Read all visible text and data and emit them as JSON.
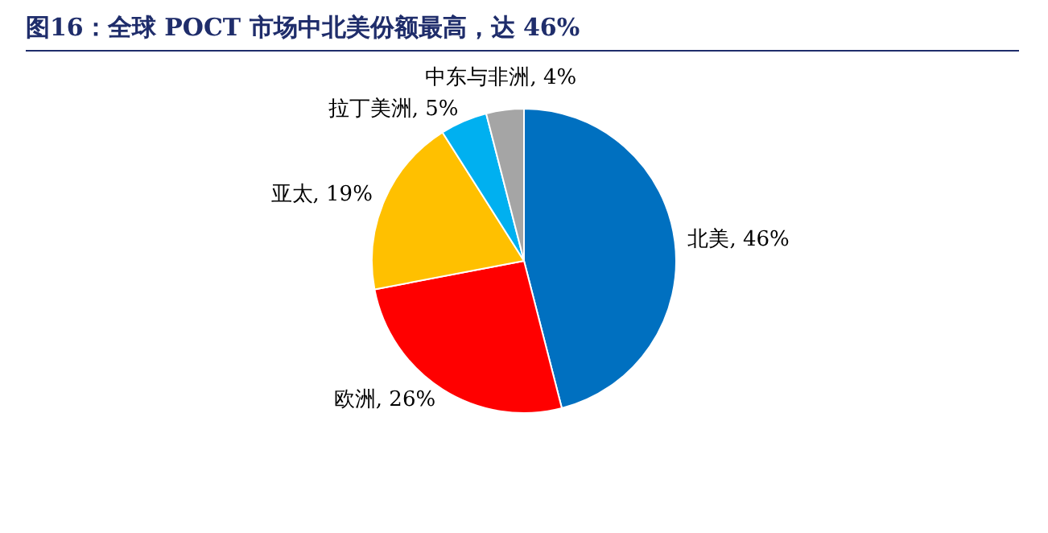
{
  "chart_data": {
    "type": "pie",
    "title": "图16：全球 POCT 市场中北美份额最高，达 46%",
    "categories": [
      "北美",
      "欧洲",
      "亚太",
      "拉丁美洲",
      "中东与非洲"
    ],
    "values": [
      46,
      26,
      19,
      5,
      4
    ],
    "value_labels": [
      "46%",
      "26%",
      "19%",
      "5%",
      "4%"
    ],
    "colors": [
      "#0070c0",
      "#ff0000",
      "#ffc000",
      "#00b0f0",
      "#a5a5a5"
    ],
    "legend": false
  }
}
